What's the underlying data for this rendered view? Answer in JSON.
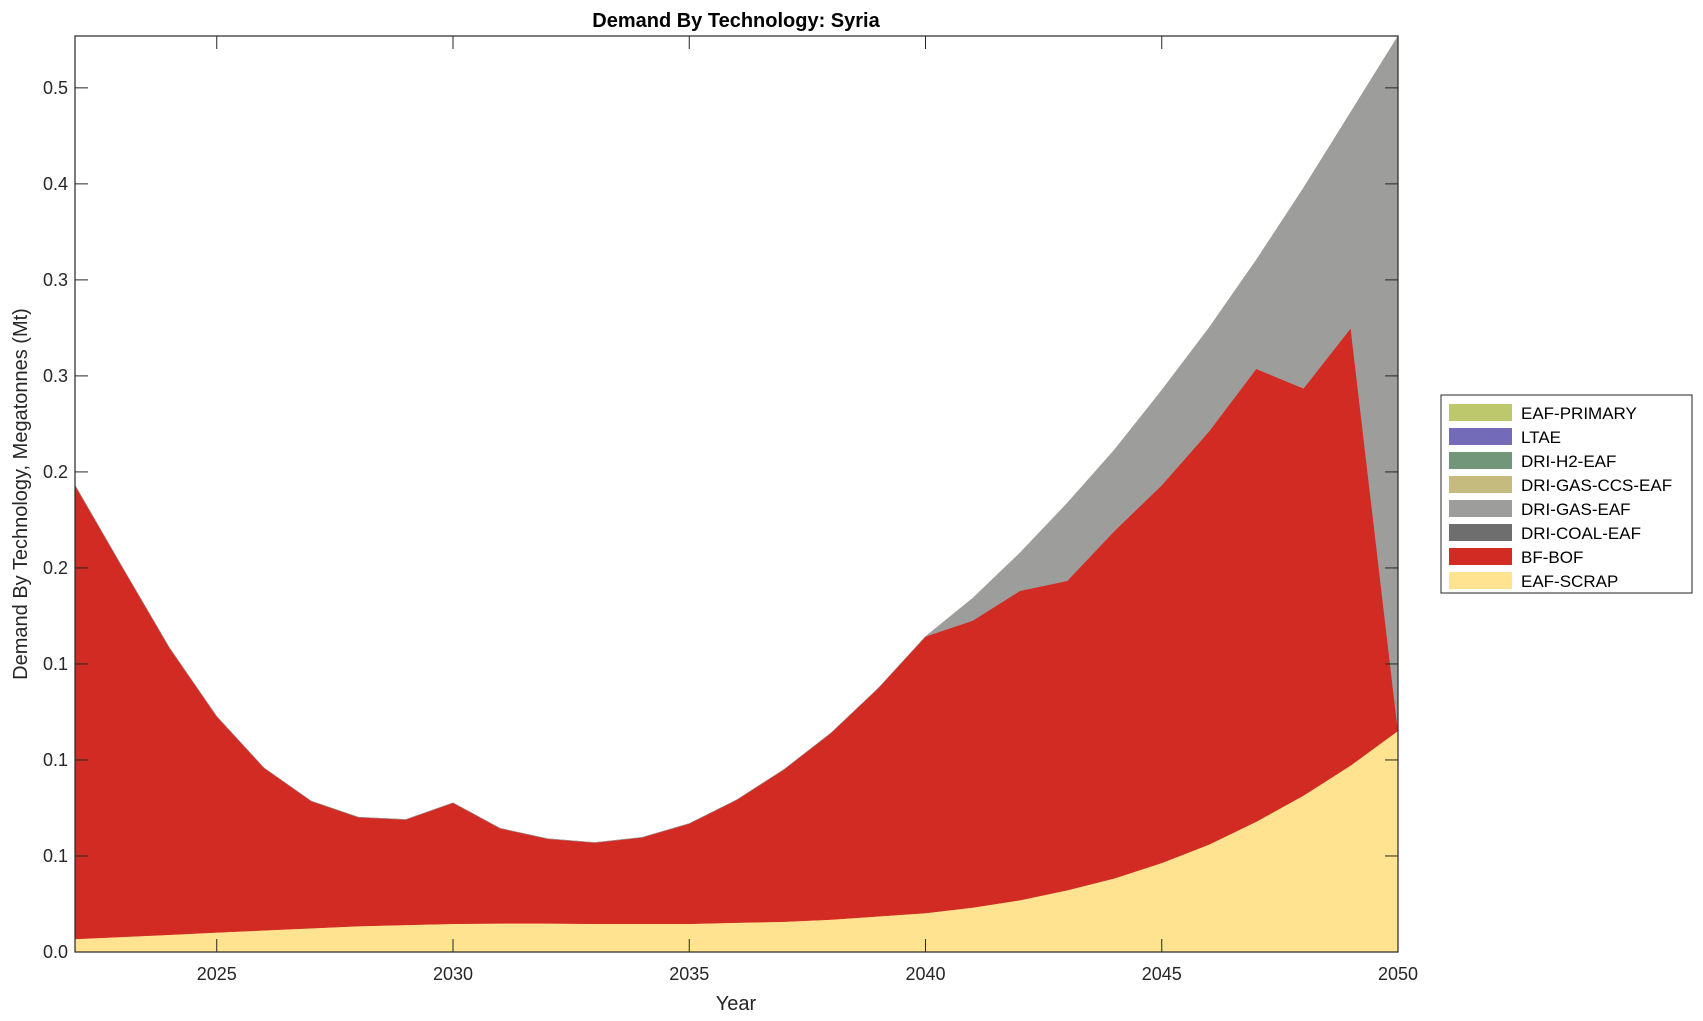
{
  "chart_data": {
    "type": "area",
    "stacked": true,
    "title": "Demand By Technology: Syria",
    "xlabel": "Year",
    "ylabel": "Demand By Technology, Megatonnes (Mt)",
    "xlim": [
      2022,
      2050
    ],
    "ylim": [
      0,
      0.477
    ],
    "grid": false,
    "legend_position": "right-outside",
    "x_ticks": [
      2025,
      2030,
      2035,
      2040,
      2045,
      2050
    ],
    "y_ticks": [
      0,
      0.05,
      0.1,
      0.15,
      0.2,
      0.25,
      0.3,
      0.35,
      0.4,
      0.45
    ],
    "y_tick_labels": [
      "0.0",
      "0.1",
      "0.1",
      "0.1",
      "0.2",
      "0.2",
      "0.3",
      "0.3",
      "0.4",
      "0.5"
    ],
    "x": [
      2022,
      2023,
      2024,
      2025,
      2026,
      2027,
      2028,
      2029,
      2030,
      2031,
      2032,
      2033,
      2034,
      2035,
      2036,
      2037,
      2038,
      2039,
      2040,
      2041,
      2042,
      2043,
      2044,
      2045,
      2046,
      2047,
      2048,
      2049,
      2050
    ],
    "legend": [
      "EAF-PRIMARY",
      "LTAE",
      "DRI-H2-EAF",
      "DRI-GAS-CCS-EAF",
      "DRI-GAS-EAF",
      "DRI-COAL-EAF",
      "BF-BOF",
      "EAF-SCRAP"
    ],
    "series": [
      {
        "name": "EAF-SCRAP",
        "color": "#FFE390",
        "values": [
          0.0068,
          0.0079,
          0.009,
          0.0102,
          0.0113,
          0.0124,
          0.0135,
          0.0141,
          0.0147,
          0.0149,
          0.0149,
          0.0147,
          0.0147,
          0.0147,
          0.0153,
          0.0158,
          0.0169,
          0.0186,
          0.0203,
          0.0232,
          0.027,
          0.0322,
          0.0384,
          0.0464,
          0.056,
          0.0679,
          0.0815,
          0.0972,
          0.1152
        ]
      },
      {
        "name": "BF-BOF",
        "color": "#D22B23",
        "values": [
          0.2363,
          0.1926,
          0.1494,
          0.1125,
          0.0846,
          0.0662,
          0.0567,
          0.0549,
          0.063,
          0.0495,
          0.0441,
          0.0423,
          0.045,
          0.0522,
          0.0639,
          0.0792,
          0.0972,
          0.1188,
          0.144,
          0.1494,
          0.1611,
          0.1611,
          0.1809,
          0.1967,
          0.2151,
          0.2358,
          0.212,
          0.2277,
          0
        ]
      },
      {
        "name": "DRI-COAL-EAF",
        "color": "#6E6E6E",
        "values": [
          0,
          0,
          0,
          0,
          0,
          0,
          0,
          0,
          0,
          0,
          0,
          0,
          0,
          0,
          0,
          0,
          0,
          0,
          0,
          0,
          0,
          0,
          0,
          0,
          0,
          0,
          0,
          0,
          0
        ]
      },
      {
        "name": "DRI-GAS-EAF",
        "color": "#9D9D9B",
        "values": [
          0,
          0,
          0,
          0,
          0,
          0,
          0,
          0,
          0,
          0,
          0,
          0,
          0,
          0,
          0,
          0,
          0,
          0,
          0,
          0.0117,
          0.0198,
          0.0405,
          0.0423,
          0.0495,
          0.054,
          0.0567,
          0.1044,
          0.1125,
          0.3618
        ]
      },
      {
        "name": "DRI-GAS-CCS-EAF",
        "color": "#C5BB7E",
        "values": [
          0,
          0,
          0,
          0,
          0,
          0,
          0,
          0,
          0,
          0,
          0,
          0,
          0,
          0,
          0,
          0,
          0,
          0,
          0,
          0,
          0,
          0,
          0,
          0,
          0,
          0,
          0,
          0,
          0
        ]
      },
      {
        "name": "DRI-H2-EAF",
        "color": "#72967A",
        "values": [
          0,
          0,
          0,
          0,
          0,
          0,
          0,
          0,
          0,
          0,
          0,
          0,
          0,
          0,
          0,
          0,
          0,
          0,
          0,
          0,
          0,
          0,
          0,
          0,
          0,
          0,
          0,
          0,
          0
        ]
      },
      {
        "name": "LTAE",
        "color": "#736BB7",
        "values": [
          0,
          0,
          0,
          0,
          0,
          0,
          0,
          0,
          0,
          0,
          0,
          0,
          0,
          0,
          0,
          0,
          0,
          0,
          0,
          0,
          0,
          0,
          0,
          0,
          0,
          0,
          0,
          0,
          0
        ]
      },
      {
        "name": "EAF-PRIMARY",
        "color": "#BDC86C",
        "values": [
          0,
          0,
          0,
          0,
          0,
          0,
          0,
          0,
          0,
          0,
          0,
          0,
          0,
          0,
          0,
          0,
          0,
          0,
          0,
          0,
          0,
          0,
          0,
          0,
          0,
          0,
          0,
          0,
          0
        ]
      }
    ]
  }
}
